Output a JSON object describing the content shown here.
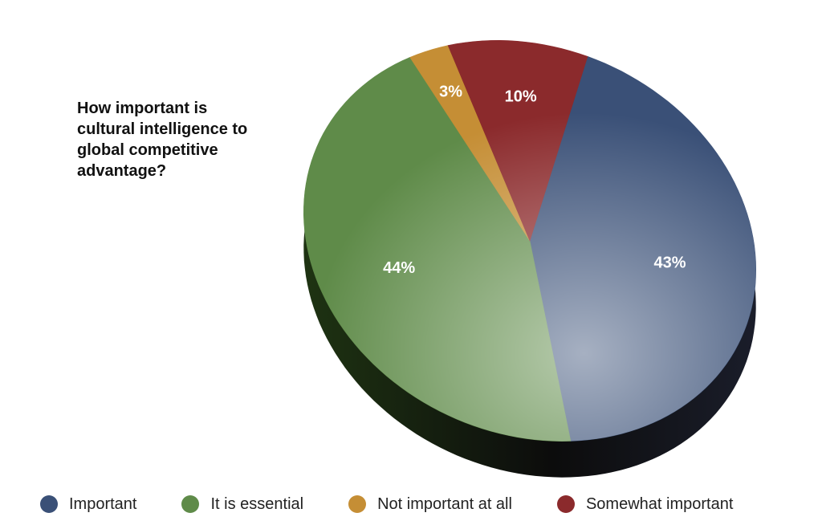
{
  "chart_data": {
    "type": "pie",
    "title": "How important is cultural intelligence to global competitive advantage?",
    "slices": [
      {
        "name": "Important",
        "value": 43,
        "label": "43%",
        "color": "#3a5077"
      },
      {
        "name": "It is essential",
        "value": 44,
        "label": "44%",
        "color": "#5f8b49"
      },
      {
        "name": "Not important at all",
        "value": 3,
        "label": "3%",
        "color": "#c58e35"
      },
      {
        "name": "Somewhat important",
        "value": 10,
        "label": "10%",
        "color": "#8b2a2c"
      }
    ],
    "legend_position": "bottom"
  }
}
